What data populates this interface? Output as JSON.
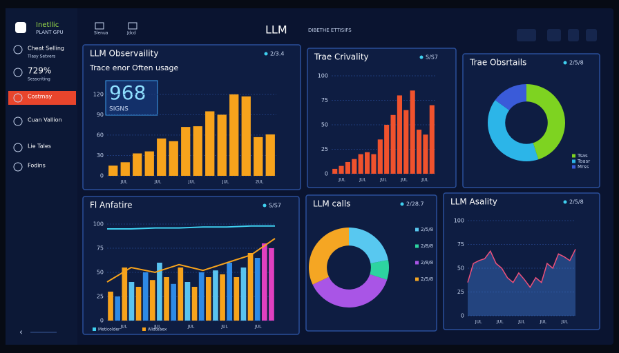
{
  "sidebar": {
    "brand": "Inetllic",
    "brand_sub": "PLANT GPU",
    "items": [
      {
        "label": "Cheat Selling",
        "sub": "Tlasy Setvers"
      },
      {
        "label": "729%",
        "sub": "Sesscriting"
      },
      {
        "label": "Costmay",
        "active": true
      },
      {
        "label": "Cuan Vallion"
      },
      {
        "label": "Lie Tales"
      },
      {
        "label": "Fodins"
      }
    ]
  },
  "header": {
    "tabs": [
      "Slenua",
      "Jdcd"
    ],
    "title": "LLM",
    "subtitle": "DIBETHE ETTISIFS"
  },
  "panels": [
    {
      "type": "bar",
      "title": "LLM Observaility",
      "subtitle": "Trace enor Often usage",
      "kpi": "968",
      "kpi_label": "SIGNS",
      "badge": "2/3.4",
      "color": "#f7a31c",
      "ylim": [
        0,
        130
      ],
      "yticks": [
        0,
        30,
        60,
        90,
        120
      ],
      "xlabels": [
        "JUL",
        "JUL",
        "JUL",
        "JUL",
        "2UL"
      ],
      "values": [
        15,
        20,
        33,
        36,
        55,
        51,
        72,
        73,
        95,
        90,
        120,
        117,
        57,
        61
      ]
    },
    {
      "type": "bar",
      "title": "Trae Crivality",
      "badge": "S/S7",
      "color": "#f0522d",
      "ylim": [
        0,
        100
      ],
      "yticks": [
        0,
        25,
        50,
        75,
        100
      ],
      "xlabels": [
        "JUL",
        "JUL",
        "JUL",
        "JUL",
        "JUL"
      ],
      "values": [
        5,
        8,
        12,
        15,
        20,
        22,
        20,
        35,
        50,
        60,
        80,
        65,
        85,
        45,
        40,
        70
      ]
    },
    {
      "type": "donut",
      "title": "Trae Obsrtails",
      "badge": "2/5/8",
      "values": [
        45,
        40,
        15
      ],
      "colors": [
        "#7ed321",
        "#2cb5e8",
        "#3a5bd9"
      ],
      "labels": [
        "Tsas",
        "Toasr",
        "Mrss"
      ]
    },
    {
      "type": "combo",
      "title": "Fl Anfatire",
      "badge": "S/S7",
      "ylim": [
        0,
        100
      ],
      "yticks": [
        0,
        25,
        50,
        75,
        100
      ],
      "xlabels": [
        "JUL",
        "JUL",
        "JUL",
        "JUL",
        "JUL"
      ],
      "values": [
        30,
        25,
        55,
        40,
        35,
        50,
        42,
        60,
        45,
        38,
        55,
        40,
        35,
        50,
        45,
        52,
        48,
        60,
        45,
        55,
        70,
        65,
        80,
        75
      ],
      "colors": [
        "#f7a31c",
        "#2e8ae6",
        "#f7a31c",
        "#59c3f0",
        "#f7a31c",
        "#2e8ae6",
        "#f7a31c",
        "#59c3f0",
        "#f7a31c",
        "#2e8ae6",
        "#f7a31c",
        "#59c3f0",
        "#f7a31c",
        "#2e8ae6",
        "#f7a31c",
        "#59c3f0",
        "#f7a31c",
        "#2e8ae6",
        "#f7a31c",
        "#59c3f0",
        "#f7a31c",
        "#2e8ae6",
        "#e040c0",
        "#e040c0"
      ],
      "lines": [
        {
          "name": "Meticolder",
          "color": "#3fd0f0",
          "values": [
            95,
            95,
            96,
            96,
            97,
            97,
            98,
            98
          ]
        },
        {
          "name": "Alisteaex",
          "color": "#f7a31c",
          "values": [
            40,
            55,
            50,
            58,
            52,
            60,
            68,
            85
          ]
        }
      ]
    },
    {
      "type": "donut",
      "title": "LLM calls",
      "badge": "2/28.7",
      "values": [
        22,
        8,
        38,
        32
      ],
      "colors": [
        "#58c8f0",
        "#2dd4a0",
        "#a955e6",
        "#f5a623"
      ],
      "labels": [
        "2/5/8",
        "2/8/8",
        "2/8/8",
        "2/5/8"
      ]
    },
    {
      "type": "area",
      "title": "LLM Asality",
      "badge": "2/5/8",
      "color": "#4a90f0",
      "ylim": [
        0,
        100
      ],
      "yticks": [
        0,
        25,
        50,
        75,
        100
      ],
      "xlabels": [
        "JUL",
        "JUL",
        "JUL",
        "JUL",
        "JUL"
      ],
      "values": [
        35,
        55,
        58,
        60,
        68,
        55,
        50,
        40,
        35,
        45,
        38,
        30,
        40,
        35,
        55,
        50,
        65,
        62,
        58,
        70
      ]
    }
  ]
}
